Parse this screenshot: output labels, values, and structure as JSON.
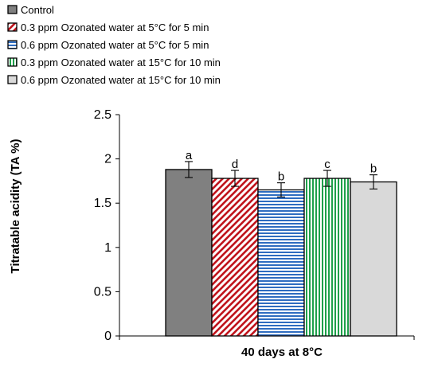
{
  "chart_data": {
    "type": "bar",
    "categories": [
      "40 days at 8°C"
    ],
    "xlabel": "40 days at 8°C",
    "ylabel": "Titratable acidity (TA %)",
    "ylim": [
      0,
      2.5
    ],
    "yticks": [
      "0",
      "0.5",
      "1",
      "1.5",
      "2",
      "2.5"
    ],
    "grid": false,
    "legend_position": "top-left",
    "series": [
      {
        "name": "Control",
        "values": [
          1.88
        ],
        "error": [
          0.09
        ],
        "letter": "a",
        "fill": "#808080",
        "pattern": "solid"
      },
      {
        "name": "0.3 ppm Ozonated water at 5°C for 5 min",
        "values": [
          1.78
        ],
        "error": [
          0.09
        ],
        "letter": "d",
        "fill": "#c0141c",
        "pattern": "diagonal"
      },
      {
        "name": "0.6 ppm Ozonated water at 5°C for 5 min",
        "values": [
          1.65
        ],
        "error": [
          0.08
        ],
        "letter": "b",
        "fill": "#2e6cc0",
        "pattern": "horizontal"
      },
      {
        "name": "0.3 ppm Ozonated water at 15°C for 10 min",
        "values": [
          1.78
        ],
        "error": [
          0.09
        ],
        "letter": "c",
        "fill": "#1ea04a",
        "pattern": "vertical"
      },
      {
        "name": "0.6 ppm Ozonated water at 15°C for 10 min",
        "values": [
          1.74
        ],
        "error": [
          0.08
        ],
        "letter": "b",
        "fill": "#d9d9d9",
        "pattern": "solid"
      }
    ]
  }
}
